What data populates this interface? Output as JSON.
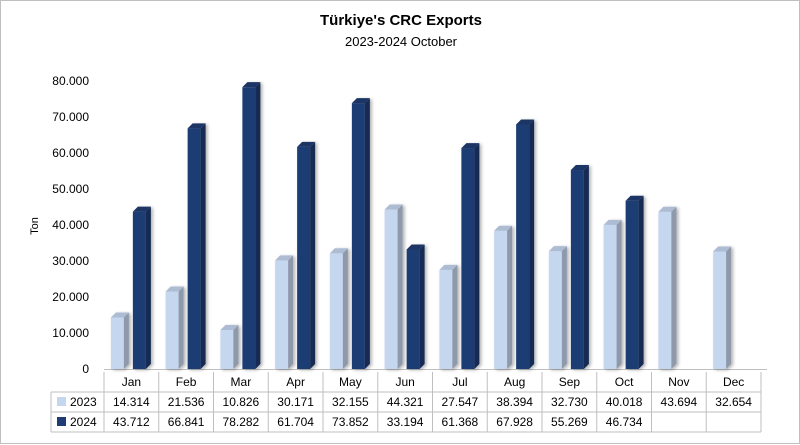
{
  "chart_data": {
    "type": "bar",
    "title": "Türkiye's CRC Exports",
    "subtitle": "2023-2024 October",
    "ylabel": "Ton",
    "xlabel": "",
    "ylim": [
      0,
      80000
    ],
    "yticks": [
      "0",
      "10.000",
      "20.000",
      "30.000",
      "40.000",
      "50.000",
      "60.000",
      "70.000",
      "80.000"
    ],
    "ytick_values": [
      0,
      10000,
      20000,
      30000,
      40000,
      50000,
      60000,
      70000,
      80000
    ],
    "grid": false,
    "legend": "data-table",
    "categories": [
      "Jan",
      "Feb",
      "Mar",
      "Apr",
      "May",
      "Jun",
      "Jul",
      "Aug",
      "Sep",
      "Oct",
      "Nov",
      "Dec"
    ],
    "series": [
      {
        "name": "2023",
        "color": "#c5d6ef",
        "values": [
          14314,
          21536,
          10826,
          30171,
          32155,
          44321,
          27547,
          38394,
          32730,
          40018,
          43694,
          32654
        ],
        "labels": [
          "14.314",
          "21.536",
          "10.826",
          "30.171",
          "32.155",
          "44.321",
          "27.547",
          "38.394",
          "32.730",
          "40.018",
          "43.694",
          "32.654"
        ]
      },
      {
        "name": "2024",
        "color": "#1f3d73",
        "values": [
          43712,
          66841,
          78282,
          61704,
          73852,
          33194,
          61368,
          67928,
          55269,
          46734,
          null,
          null
        ],
        "labels": [
          "43.712",
          "66.841",
          "78.282",
          "61.704",
          "73.852",
          "33.194",
          "61.368",
          "67.928",
          "55.269",
          "46.734",
          "",
          ""
        ]
      }
    ]
  }
}
